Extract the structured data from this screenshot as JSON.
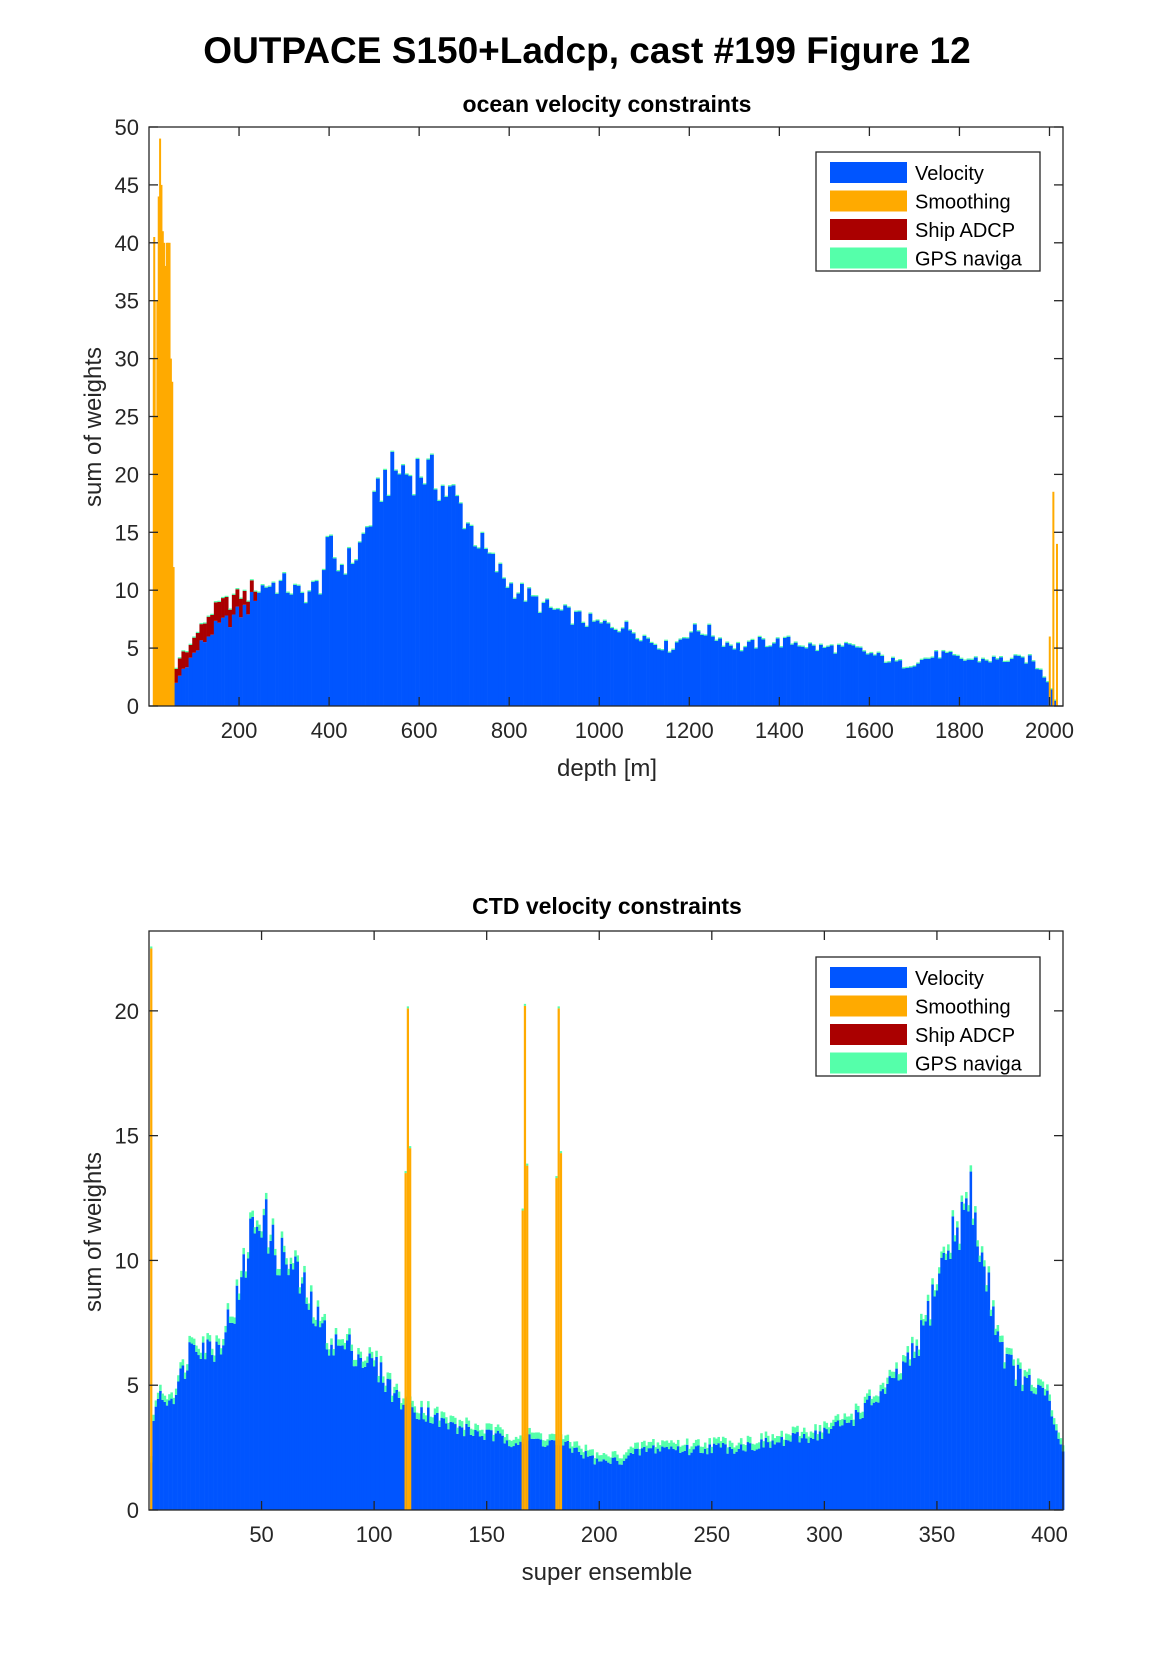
{
  "figure": {
    "title": "OUTPACE S150+Ladcp, cast #199  Figure 12"
  },
  "colors": {
    "velocity": "#0055ff",
    "smoothing": "#ffaa00",
    "ship_adcp": "#aa0000",
    "gps": "#55ffaa"
  },
  "legend_labels": [
    "Velocity",
    "Smoothing",
    "Ship ADCP",
    "GPS naviga"
  ],
  "chart_data": [
    {
      "type": "bar",
      "stacked": true,
      "title": "ocean velocity constraints",
      "xlabel": "depth [m]",
      "ylabel": "sum of weights",
      "xlim": [
        0,
        2030
      ],
      "ylim": [
        0,
        50
      ],
      "xticks": [
        200,
        400,
        600,
        800,
        1000,
        1200,
        1400,
        1600,
        1800,
        2000
      ],
      "yticks": [
        0,
        5,
        10,
        15,
        20,
        25,
        30,
        35,
        40,
        45,
        50
      ],
      "legend": {
        "location": "top-right",
        "entries": [
          "Velocity",
          "Smoothing",
          "Ship ADCP",
          "GPS naviga"
        ]
      },
      "bin_width_m": 8,
      "series": [
        {
          "name": "Velocity",
          "x": [
            4,
            40,
            60,
            80,
            100,
            120,
            140,
            160,
            180,
            200,
            220,
            240,
            260,
            300,
            340,
            380,
            400,
            420,
            460,
            500,
            520,
            540,
            560,
            580,
            600,
            620,
            640,
            660,
            680,
            700,
            720,
            760,
            800,
            840,
            880,
            920,
            960,
            1000,
            1040,
            1080,
            1120,
            1160,
            1200,
            1240,
            1280,
            1320,
            1360,
            1400,
            1440,
            1480,
            1520,
            1560,
            1600,
            1640,
            1680,
            1720,
            1760,
            1800,
            1840,
            1880,
            1920,
            1960,
            2000,
            2016
          ],
          "y": [
            0,
            0,
            2,
            3.5,
            4.5,
            5.5,
            6.5,
            7,
            7.5,
            8,
            8.5,
            10,
            10.5,
            10.5,
            9.5,
            10.5,
            14,
            12,
            13,
            17,
            19.5,
            20,
            20.5,
            20,
            20.5,
            20,
            19.5,
            18.5,
            18,
            16.5,
            15,
            12.5,
            10.5,
            9.5,
            8.5,
            8,
            7.5,
            7,
            7,
            6.5,
            5.5,
            5,
            6.5,
            6.5,
            5.5,
            5,
            5.5,
            5.5,
            5.5,
            5,
            5,
            5,
            4.5,
            4,
            3.5,
            4,
            4.5,
            4,
            4,
            4,
            4,
            4,
            2,
            0
          ]
        },
        {
          "name": "Smoothing",
          "bars": [
            [
              10,
              30
            ],
            [
              11,
              40.5
            ],
            [
              12,
              35
            ],
            [
              15,
              25
            ],
            [
              18,
              35
            ],
            [
              21,
              44
            ],
            [
              24,
              49
            ],
            [
              27,
              45
            ],
            [
              30,
              41
            ],
            [
              33,
              40
            ],
            [
              36,
              38
            ],
            [
              39,
              40
            ],
            [
              42,
              40
            ],
            [
              45,
              40
            ],
            [
              48,
              30
            ],
            [
              51,
              28
            ],
            [
              54,
              12
            ],
            [
              2000,
              6
            ],
            [
              2008,
              18.5
            ],
            [
              2016,
              14
            ]
          ]
        },
        {
          "name": "Ship ADCP",
          "bars": [
            [
              30,
              0.8
            ],
            [
              38,
              0.8
            ],
            [
              46,
              0.8
            ],
            [
              52,
              0.8
            ],
            [
              60,
              1.2
            ],
            [
              68,
              1.5
            ],
            [
              76,
              1.5
            ],
            [
              84,
              1.3
            ],
            [
              92,
              1.1
            ],
            [
              100,
              1.3
            ],
            [
              108,
              1.5
            ],
            [
              116,
              1.4
            ],
            [
              124,
              1.6
            ],
            [
              132,
              1.7
            ],
            [
              140,
              1.7
            ],
            [
              148,
              1.6
            ],
            [
              156,
              1.8
            ],
            [
              164,
              1.7
            ],
            [
              172,
              1.6
            ],
            [
              180,
              1.5
            ],
            [
              188,
              1.7
            ],
            [
              196,
              1.5
            ],
            [
              204,
              1.6
            ],
            [
              212,
              1.2
            ],
            [
              220,
              1.1
            ],
            [
              228,
              1.0
            ],
            [
              236,
              0.8
            ]
          ]
        },
        {
          "name": "GPS naviga",
          "value": 0.1
        }
      ]
    },
    {
      "type": "bar",
      "stacked": true,
      "title": "CTD velocity constraints",
      "xlabel": "super ensemble",
      "ylabel": "sum of weights",
      "xlim": [
        0,
        406
      ],
      "ylim": [
        0,
        23.2
      ],
      "xticks": [
        50,
        100,
        150,
        200,
        250,
        300,
        350,
        400
      ],
      "yticks": [
        0,
        5,
        10,
        15,
        20
      ],
      "legend": {
        "location": "top-right",
        "entries": [
          "Velocity",
          "Smoothing",
          "Ship ADCP",
          "GPS naviga"
        ]
      },
      "series": [
        {
          "name": "Velocity",
          "x": [
            1,
            3,
            6,
            10,
            15,
            20,
            25,
            30,
            35,
            40,
            45,
            50,
            55,
            60,
            65,
            70,
            75,
            80,
            85,
            90,
            95,
            100,
            105,
            110,
            115,
            120,
            125,
            130,
            140,
            150,
            160,
            170,
            180,
            190,
            200,
            210,
            220,
            230,
            240,
            250,
            260,
            270,
            280,
            290,
            300,
            310,
            320,
            330,
            340,
            345,
            350,
            355,
            360,
            365,
            370,
            375,
            380,
            385,
            390,
            395,
            400,
            403,
            406
          ],
          "y": [
            2,
            4.5,
            4.5,
            4.5,
            5.5,
            7,
            6.5,
            6.5,
            7.5,
            8.5,
            11,
            12,
            10.5,
            10,
            9.5,
            8.5,
            7.5,
            6.8,
            6.5,
            6.5,
            6,
            5.8,
            5.2,
            4.5,
            4.2,
            4.0,
            3.8,
            3.5,
            3.2,
            3.0,
            2.8,
            2.8,
            2.7,
            2.4,
            1.9,
            2.0,
            2.4,
            2.5,
            2.4,
            2.5,
            2.5,
            2.6,
            2.7,
            2.9,
            3.1,
            3.5,
            4.2,
            5.0,
            6.2,
            7.5,
            9.2,
            10.5,
            11.5,
            12.5,
            10,
            8,
            6.2,
            5.5,
            5.0,
            4.8,
            4.3,
            3.0,
            2.5
          ]
        },
        {
          "name": "Smoothing",
          "bars": [
            [
              1,
              22.5
            ],
            [
              114,
              13.5
            ],
            [
              115,
              20.1
            ],
            [
              116,
              14.5
            ],
            [
              166,
              12
            ],
            [
              167,
              20.2
            ],
            [
              168,
              13.8
            ],
            [
              181,
              13.3
            ],
            [
              182,
              20.1
            ],
            [
              183,
              14.3
            ]
          ]
        },
        {
          "name": "Ship ADCP",
          "bars": []
        },
        {
          "name": "GPS naviga",
          "value": 0.25
        }
      ]
    }
  ]
}
